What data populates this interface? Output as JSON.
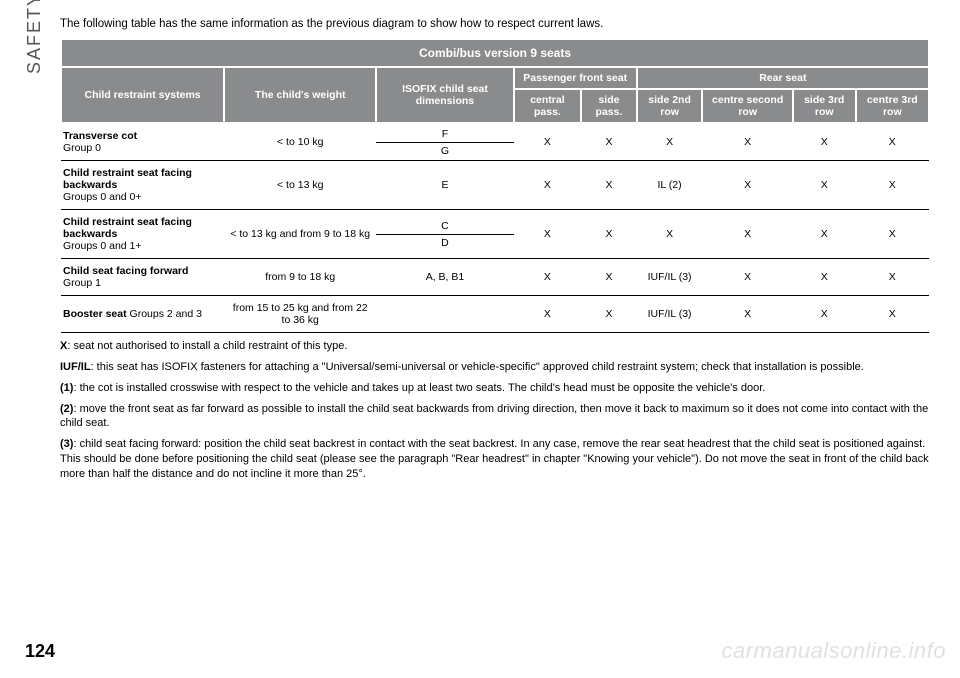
{
  "sidebar": "SAFETY",
  "intro": "The following table has the same information as the previous diagram to show how to respect current laws.",
  "table": {
    "title": "Combi/bus version 9 seats",
    "headers": {
      "col1": "Child restraint systems",
      "col2": "The child's weight",
      "col3": "ISOFIX child seat dimensions",
      "front_group": "Passenger front seat",
      "rear_group": "Rear seat",
      "front_a": "central pass.",
      "front_b": "side pass.",
      "rear_a": "side 2nd row",
      "rear_b": "centre second row",
      "rear_c": "side 3rd row",
      "rear_d": "centre 3rd row"
    },
    "rows": [
      {
        "name_bold": "Transverse cot",
        "name_rest": "Group 0",
        "weight": "< to 10 kg",
        "dims": [
          "F",
          "G"
        ],
        "cells": [
          "X",
          "X",
          "X",
          "X",
          "X",
          "X"
        ]
      },
      {
        "name_bold": "Child restraint seat facing backwards",
        "name_rest": "Groups 0 and 0+",
        "weight": "< to 13 kg",
        "dims": [
          "E"
        ],
        "cells": [
          "X",
          "X",
          "IL (2)",
          "X",
          "X",
          "X"
        ]
      },
      {
        "name_bold": "Child restraint seat facing backwards",
        "name_rest": "Groups 0 and 1+",
        "weight": "< to 13 kg and from 9 to 18 kg",
        "dims": [
          "C",
          "D"
        ],
        "cells": [
          "X",
          "X",
          "X",
          "X",
          "X",
          "X"
        ]
      },
      {
        "name_bold": "Child seat facing forward",
        "name_rest": " Group 1",
        "weight": "from 9 to 18 kg",
        "dims": [
          "A, B, B1"
        ],
        "cells": [
          "X",
          "X",
          "IUF/IL (3)",
          "X",
          "X",
          "X"
        ]
      },
      {
        "name_bold": "Booster seat",
        "name_rest": " Groups 2 and 3",
        "weight": "from 15 to 25 kg and from 22 to 36 kg",
        "dims": [
          ""
        ],
        "cells": [
          "X",
          "X",
          "IUF/IL (3)",
          "X",
          "X",
          "X"
        ]
      }
    ]
  },
  "notes": {
    "x": "X: seat not authorised to install a child restraint of this type.",
    "iuf": "IUF/IL: this seat has ISOFIX fasteners for attaching a \"Universal/semi-universal or vehicle-specific\" approved child restraint system; check that installation is possible.",
    "n1": "(1): the cot is installed crosswise with respect to the vehicle and takes up at least two seats. The child's head must be opposite the vehicle's door.",
    "n2": "(2): move the front seat as far forward as possible to install the child seat backwards from driving direction, then move it back to maximum so it does not come into contact with the child seat.",
    "n3": "(3): child seat facing forward: position the child seat backrest in contact with the seat backrest. In any case, remove the rear seat headrest that the child seat is positioned against. This should be done before positioning the child seat (please see the paragraph \"Rear headrest\" in chapter \"Knowing your vehicle\"). Do not move the seat in front of the child back more than half the distance and do not incline it more than 25°."
  },
  "pageNumber": "124",
  "watermark": "carmanualsonline.info",
  "style": {
    "header_bg": "#8a8b8c",
    "header_fg": "#ffffff",
    "border_color": "#000000",
    "body_font_size": 11,
    "table_font_size": 10.5
  }
}
